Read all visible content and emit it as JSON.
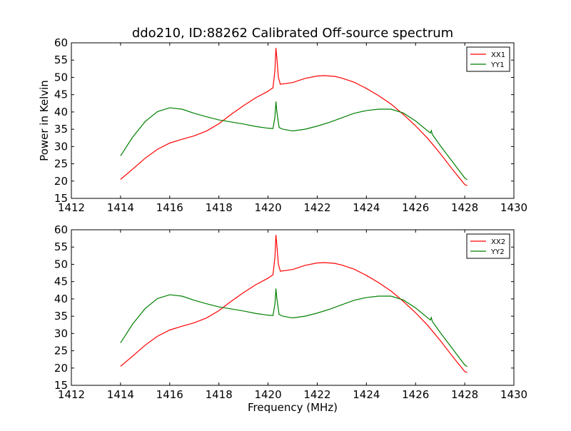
{
  "chart_data": [
    {
      "type": "line",
      "title": "ddo210, ID:88262 Calibrated Off-source spectrum",
      "xlabel": "",
      "ylabel": "Power in Kelvin",
      "xlim": [
        1412,
        1430
      ],
      "ylim": [
        15,
        60
      ],
      "xticks": [
        "1412",
        "1414",
        "1416",
        "1418",
        "1420",
        "1422",
        "1424",
        "1426",
        "1428",
        "1430"
      ],
      "yticks": [
        "15",
        "20",
        "25",
        "30",
        "35",
        "40",
        "45",
        "50",
        "55",
        "60"
      ],
      "legend_position": "top-right",
      "series": [
        {
          "name": "XX1",
          "color": "#ff0000",
          "points": [
            [
              1414.0,
              20.5
            ],
            [
              1414.5,
              23.5
            ],
            [
              1415.0,
              26.6
            ],
            [
              1415.5,
              29.2
            ],
            [
              1416.0,
              31.0
            ],
            [
              1416.5,
              32.1
            ],
            [
              1417.0,
              33.1
            ],
            [
              1417.5,
              34.5
            ],
            [
              1418.0,
              36.6
            ],
            [
              1418.5,
              39.3
            ],
            [
              1419.0,
              41.8
            ],
            [
              1419.5,
              44.1
            ],
            [
              1420.0,
              46.0
            ],
            [
              1420.2,
              47.0
            ],
            [
              1420.28,
              52.0
            ],
            [
              1420.32,
              58.5
            ],
            [
              1420.36,
              55.5
            ],
            [
              1420.42,
              50.0
            ],
            [
              1420.5,
              48.0
            ],
            [
              1421.0,
              48.5
            ],
            [
              1421.5,
              49.7
            ],
            [
              1422.0,
              50.4
            ],
            [
              1422.3,
              50.5
            ],
            [
              1422.7,
              50.3
            ],
            [
              1423.0,
              49.8
            ],
            [
              1423.5,
              48.6
            ],
            [
              1424.0,
              46.8
            ],
            [
              1424.5,
              44.7
            ],
            [
              1425.0,
              42.3
            ],
            [
              1425.5,
              39.3
            ],
            [
              1426.0,
              36.0
            ],
            [
              1426.5,
              32.3
            ],
            [
              1427.0,
              28.0
            ],
            [
              1427.5,
              23.4
            ],
            [
              1428.0,
              19.0
            ],
            [
              1428.1,
              18.7
            ]
          ]
        },
        {
          "name": "YY1",
          "color": "#008000",
          "points": [
            [
              1414.0,
              27.3
            ],
            [
              1414.5,
              32.8
            ],
            [
              1415.0,
              37.2
            ],
            [
              1415.5,
              40.1
            ],
            [
              1416.0,
              41.2
            ],
            [
              1416.5,
              40.8
            ],
            [
              1417.0,
              39.6
            ],
            [
              1417.5,
              38.6
            ],
            [
              1418.0,
              37.7
            ],
            [
              1418.5,
              37.1
            ],
            [
              1419.0,
              36.5
            ],
            [
              1419.5,
              35.8
            ],
            [
              1420.0,
              35.3
            ],
            [
              1420.2,
              35.2
            ],
            [
              1420.28,
              38.5
            ],
            [
              1420.32,
              43.0
            ],
            [
              1420.36,
              40.0
            ],
            [
              1420.45,
              35.5
            ],
            [
              1420.6,
              35.0
            ],
            [
              1421.0,
              34.5
            ],
            [
              1421.5,
              35.0
            ],
            [
              1422.0,
              35.9
            ],
            [
              1422.5,
              37.0
            ],
            [
              1423.0,
              38.3
            ],
            [
              1423.5,
              39.6
            ],
            [
              1424.0,
              40.4
            ],
            [
              1424.5,
              40.8
            ],
            [
              1425.0,
              40.8
            ],
            [
              1425.5,
              39.7
            ],
            [
              1426.0,
              37.4
            ],
            [
              1426.6,
              33.9
            ],
            [
              1426.64,
              34.6
            ],
            [
              1426.68,
              33.5
            ],
            [
              1427.0,
              30.3
            ],
            [
              1427.5,
              25.6
            ],
            [
              1428.0,
              20.9
            ],
            [
              1428.1,
              20.4
            ]
          ]
        }
      ]
    },
    {
      "type": "line",
      "title": "",
      "xlabel": "Frequency (MHz)",
      "ylabel": "",
      "xlim": [
        1412,
        1430
      ],
      "ylim": [
        15,
        60
      ],
      "xticks": [
        "1412",
        "1414",
        "1416",
        "1418",
        "1420",
        "1422",
        "1424",
        "1426",
        "1428",
        "1430"
      ],
      "yticks": [
        "15",
        "20",
        "25",
        "30",
        "35",
        "40",
        "45",
        "50",
        "55",
        "60"
      ],
      "legend_position": "top-right",
      "series": [
        {
          "name": "XX2",
          "color": "#ff0000",
          "points": [
            [
              1414.0,
              20.5
            ],
            [
              1414.5,
              23.5
            ],
            [
              1415.0,
              26.6
            ],
            [
              1415.5,
              29.2
            ],
            [
              1416.0,
              31.0
            ],
            [
              1416.5,
              32.1
            ],
            [
              1417.0,
              33.1
            ],
            [
              1417.5,
              34.5
            ],
            [
              1418.0,
              36.6
            ],
            [
              1418.5,
              39.3
            ],
            [
              1419.0,
              41.8
            ],
            [
              1419.5,
              44.1
            ],
            [
              1420.0,
              46.0
            ],
            [
              1420.2,
              47.0
            ],
            [
              1420.28,
              52.0
            ],
            [
              1420.32,
              58.5
            ],
            [
              1420.36,
              55.5
            ],
            [
              1420.42,
              50.0
            ],
            [
              1420.5,
              48.0
            ],
            [
              1421.0,
              48.5
            ],
            [
              1421.5,
              49.7
            ],
            [
              1422.0,
              50.4
            ],
            [
              1422.3,
              50.5
            ],
            [
              1422.7,
              50.3
            ],
            [
              1423.0,
              49.8
            ],
            [
              1423.5,
              48.6
            ],
            [
              1424.0,
              46.8
            ],
            [
              1424.5,
              44.7
            ],
            [
              1425.0,
              42.3
            ],
            [
              1425.5,
              39.3
            ],
            [
              1426.0,
              36.0
            ],
            [
              1426.5,
              32.3
            ],
            [
              1427.0,
              28.0
            ],
            [
              1427.5,
              23.4
            ],
            [
              1428.0,
              19.0
            ],
            [
              1428.1,
              18.7
            ]
          ]
        },
        {
          "name": "YY2",
          "color": "#008000",
          "points": [
            [
              1414.0,
              27.3
            ],
            [
              1414.5,
              32.8
            ],
            [
              1415.0,
              37.2
            ],
            [
              1415.5,
              40.1
            ],
            [
              1416.0,
              41.2
            ],
            [
              1416.5,
              40.8
            ],
            [
              1417.0,
              39.6
            ],
            [
              1417.5,
              38.6
            ],
            [
              1418.0,
              37.7
            ],
            [
              1418.5,
              37.1
            ],
            [
              1419.0,
              36.5
            ],
            [
              1419.5,
              35.8
            ],
            [
              1420.0,
              35.3
            ],
            [
              1420.2,
              35.2
            ],
            [
              1420.28,
              38.5
            ],
            [
              1420.32,
              43.0
            ],
            [
              1420.36,
              40.0
            ],
            [
              1420.45,
              35.5
            ],
            [
              1420.6,
              35.0
            ],
            [
              1421.0,
              34.5
            ],
            [
              1421.5,
              35.0
            ],
            [
              1422.0,
              35.9
            ],
            [
              1422.5,
              37.0
            ],
            [
              1423.0,
              38.3
            ],
            [
              1423.5,
              39.6
            ],
            [
              1424.0,
              40.4
            ],
            [
              1424.5,
              40.8
            ],
            [
              1425.0,
              40.8
            ],
            [
              1425.5,
              39.7
            ],
            [
              1426.0,
              37.4
            ],
            [
              1426.6,
              33.9
            ],
            [
              1426.64,
              34.6
            ],
            [
              1426.68,
              33.5
            ],
            [
              1427.0,
              30.3
            ],
            [
              1427.5,
              25.6
            ],
            [
              1428.0,
              20.9
            ],
            [
              1428.1,
              20.4
            ]
          ]
        }
      ]
    }
  ]
}
